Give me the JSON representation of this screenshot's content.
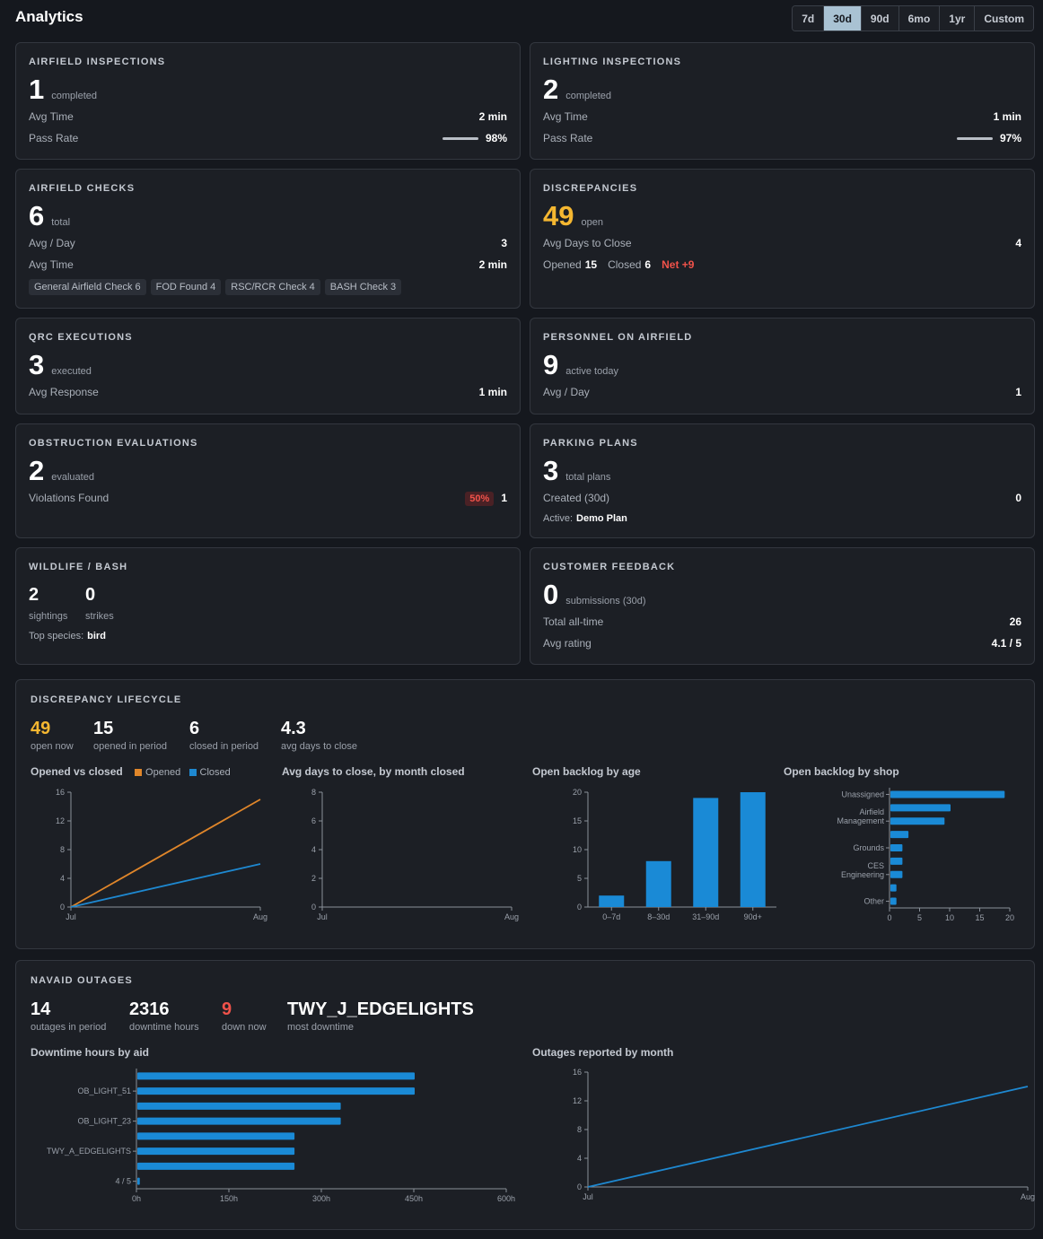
{
  "header": {
    "title": "Analytics",
    "ranges": [
      "7d",
      "30d",
      "90d",
      "6mo",
      "1yr",
      "Custom"
    ],
    "active_range": "30d"
  },
  "cards": {
    "airfield_inspections": {
      "title": "AIRFIELD INSPECTIONS",
      "value": "1",
      "sub": "completed",
      "avg_time_label": "Avg Time",
      "avg_time": "2 min",
      "pass_rate_label": "Pass Rate",
      "pass_rate": "98%"
    },
    "lighting_inspections": {
      "title": "LIGHTING INSPECTIONS",
      "value": "2",
      "sub": "completed",
      "avg_time_label": "Avg Time",
      "avg_time": "1 min",
      "pass_rate_label": "Pass Rate",
      "pass_rate": "97%"
    },
    "airfield_checks": {
      "title": "AIRFIELD CHECKS",
      "value": "6",
      "sub": "total",
      "avg_day_label": "Avg / Day",
      "avg_day": "3",
      "avg_time_label": "Avg Time",
      "avg_time": "2 min",
      "tags": [
        "General Airfield Check 6",
        "FOD Found 4",
        "RSC/RCR Check 4",
        "BASH Check 3"
      ]
    },
    "discrepancies": {
      "title": "DISCREPANCIES",
      "value": "49",
      "sub": "open",
      "avg_close_label": "Avg Days to Close",
      "avg_close": "4",
      "opened_label": "Opened",
      "opened": "15",
      "closed_label": "Closed",
      "closed": "6",
      "net": "Net +9"
    },
    "qrc": {
      "title": "QRC EXECUTIONS",
      "value": "3",
      "sub": "executed",
      "avg_resp_label": "Avg Response",
      "avg_resp": "1 min"
    },
    "personnel": {
      "title": "PERSONNEL ON AIRFIELD",
      "value": "9",
      "sub": "active today",
      "avg_day_label": "Avg / Day",
      "avg_day": "1"
    },
    "obstruction": {
      "title": "OBSTRUCTION EVALUATIONS",
      "value": "2",
      "sub": "evaluated",
      "violations_label": "Violations Found",
      "violations_pct": "50%",
      "violations": "1"
    },
    "parking": {
      "title": "PARKING PLANS",
      "value": "3",
      "sub": "total plans",
      "created_label": "Created (30d)",
      "created": "0",
      "active_label": "Active:",
      "active": "Demo Plan"
    },
    "wildlife": {
      "title": "WILDLIFE / BASH",
      "sightings": "2",
      "sightings_label": "sightings",
      "strikes": "0",
      "strikes_label": "strikes",
      "species_label": "Top species:",
      "species": "bird"
    },
    "feedback": {
      "title": "CUSTOMER FEEDBACK",
      "value": "0",
      "sub": "submissions (30d)",
      "total_label": "Total all-time",
      "total": "26",
      "rating_label": "Avg rating",
      "rating": "4.1 / 5"
    }
  },
  "lifecycle": {
    "title": "DISCREPANCY LIFECYCLE",
    "stats": [
      {
        "value": "49",
        "label": "open now"
      },
      {
        "value": "15",
        "label": "opened in period"
      },
      {
        "value": "6",
        "label": "closed in period"
      },
      {
        "value": "4.3",
        "label": "avg days to close"
      }
    ],
    "chart_titles": {
      "opened_closed": "Opened vs closed",
      "avg_days": "Avg days to close, by month closed",
      "backlog_age": "Open backlog by age",
      "backlog_shop": "Open backlog by shop"
    },
    "legend_opened": "Opened",
    "legend_closed": "Closed",
    "colors": {
      "opened": "#e0862a",
      "closed": "#1e88d0",
      "bar": "#1a8ad6"
    }
  },
  "navaid": {
    "title": "NAVAID OUTAGES",
    "stats": [
      {
        "value": "14",
        "label": "outages in period"
      },
      {
        "value": "2316",
        "label": "downtime hours"
      },
      {
        "value": "9",
        "label": "down now"
      },
      {
        "value": "TWY_J_EDGELIGHTS",
        "label": "most downtime"
      }
    ],
    "chart_titles": {
      "downtime": "Downtime hours by aid",
      "outages_month": "Outages reported by month"
    }
  },
  "chart_data": [
    {
      "type": "line",
      "title": "Opened vs closed",
      "x": [
        "Jul",
        "Aug"
      ],
      "series": [
        {
          "name": "Opened",
          "values": [
            0,
            15
          ]
        },
        {
          "name": "Closed",
          "values": [
            0,
            6
          ]
        }
      ],
      "yticks": [
        0,
        4,
        8,
        12,
        16
      ],
      "ylim": [
        0,
        16
      ]
    },
    {
      "type": "line",
      "title": "Avg days to close, by month closed",
      "x": [
        "Jul",
        "Aug"
      ],
      "series": [],
      "yticks": [
        0,
        2,
        4,
        6,
        8
      ],
      "ylim": [
        0,
        8
      ]
    },
    {
      "type": "bar",
      "title": "Open backlog by age",
      "categories": [
        "0–7d",
        "8–30d",
        "31–90d",
        "90d+"
      ],
      "values": [
        2,
        8,
        19,
        20
      ],
      "yticks": [
        0,
        5,
        10,
        15,
        20
      ],
      "ylim": [
        0,
        20
      ]
    },
    {
      "type": "bar",
      "orientation": "horizontal",
      "title": "Open backlog by shop",
      "categories": [
        "Unassigned",
        "",
        "Airfield Management",
        "",
        "Grounds",
        "",
        "CES Engineering",
        "",
        "Other"
      ],
      "values": [
        19,
        10,
        9,
        3,
        2,
        2,
        2,
        1,
        1
      ],
      "xticks": [
        0,
        5,
        10,
        15,
        20
      ],
      "xlim": [
        0,
        20
      ]
    },
    {
      "type": "bar",
      "orientation": "horizontal",
      "title": "Downtime hours by aid",
      "categories": [
        "",
        "OB_LIGHT_51",
        "",
        "OB_LIGHT_23",
        "",
        "TWY_A_EDGELIGHTS",
        "",
        "4 / 5"
      ],
      "values": [
        450,
        450,
        330,
        330,
        255,
        255,
        255,
        4
      ],
      "xticks": [
        "0h",
        "150h",
        "300h",
        "450h",
        "600h"
      ],
      "xlim": [
        0,
        600
      ]
    },
    {
      "type": "line",
      "title": "Outages reported by month",
      "x": [
        "Jul",
        "Aug"
      ],
      "series": [
        {
          "name": "",
          "values": [
            0,
            14
          ]
        }
      ],
      "yticks": [
        0,
        4,
        8,
        12,
        16
      ],
      "ylim": [
        0,
        16
      ]
    }
  ]
}
